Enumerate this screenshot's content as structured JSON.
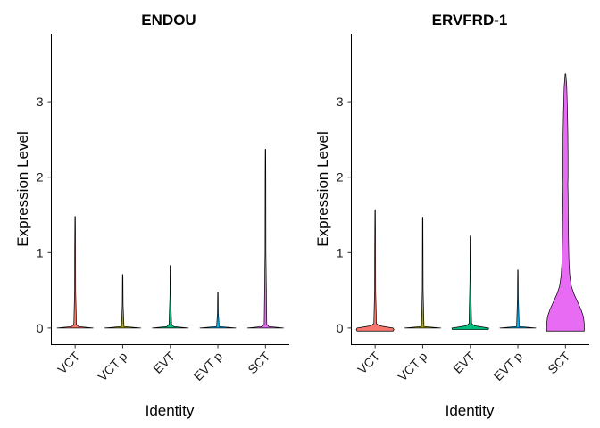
{
  "chart_data": [
    {
      "type": "violin",
      "title": "ENDOU",
      "xlabel": "Identity",
      "ylabel": "Expression Level",
      "ylim": [
        -0.22,
        3.9
      ],
      "yticks": [
        0,
        1,
        2,
        3
      ],
      "categories": [
        "VCT",
        "VCT p",
        "EVT",
        "EVT p",
        "SCT"
      ],
      "max_values": [
        1.48,
        0.71,
        0.83,
        0.48,
        2.37
      ],
      "colors": [
        "#f8766d",
        "#a3a500",
        "#00bf7d",
        "#00b0f6",
        "#e76bf3"
      ],
      "violins": [
        {
          "ys": [
            0,
            0.02,
            0.05,
            0.5,
            1.0,
            1.48
          ],
          "ws": [
            0.42,
            0.08,
            0.03,
            0.012,
            0.01,
            0.005
          ]
        },
        {
          "ys": [
            0,
            0.02,
            0.3,
            0.71
          ],
          "ws": [
            0.42,
            0.03,
            0.01,
            0.005
          ]
        },
        {
          "ys": [
            0,
            0.02,
            0.05,
            0.4,
            0.83
          ],
          "ws": [
            0.42,
            0.08,
            0.03,
            0.01,
            0.005
          ]
        },
        {
          "ys": [
            0,
            0.02,
            0.2,
            0.48
          ],
          "ws": [
            0.42,
            0.03,
            0.01,
            0.005
          ]
        },
        {
          "ys": [
            0,
            0.02,
            0.05,
            1.0,
            2.0,
            2.37
          ],
          "ws": [
            0.42,
            0.08,
            0.03,
            0.01,
            0.008,
            0.005
          ]
        }
      ]
    },
    {
      "type": "violin",
      "title": "ERVFRD-1",
      "xlabel": "Identity",
      "ylabel": "Expression Level",
      "ylim": [
        -0.22,
        3.9
      ],
      "yticks": [
        0,
        1,
        2,
        3
      ],
      "categories": [
        "VCT",
        "VCT p",
        "EVT",
        "EVT p",
        "SCT"
      ],
      "max_values": [
        1.57,
        1.47,
        1.22,
        0.77,
        3.37
      ],
      "colors": [
        "#f8766d",
        "#a3a500",
        "#00bf7d",
        "#00b0f6",
        "#e76bf3"
      ],
      "violins": [
        {
          "ys": [
            -0.04,
            -0.02,
            0,
            0.03,
            0.06,
            0.5,
            1.0,
            1.57
          ],
          "ws": [
            0.42,
            0.44,
            0.42,
            0.1,
            0.03,
            0.012,
            0.01,
            0.005
          ]
        },
        {
          "ys": [
            0,
            0.02,
            0.5,
            1.47
          ],
          "ws": [
            0.42,
            0.03,
            0.01,
            0.005
          ]
        },
        {
          "ys": [
            -0.02,
            0,
            0.03,
            0.06,
            0.6,
            1.22
          ],
          "ws": [
            0.42,
            0.43,
            0.1,
            0.03,
            0.01,
            0.005
          ]
        },
        {
          "ys": [
            0,
            0.02,
            0.4,
            0.77
          ],
          "ws": [
            0.42,
            0.03,
            0.01,
            0.005
          ]
        },
        {
          "ys": [
            -0.04,
            0.05,
            0.15,
            0.25,
            0.35,
            0.45,
            0.55,
            0.7,
            0.9,
            1.2,
            1.5,
            1.8,
            1.9,
            2.0,
            2.3,
            2.6,
            2.9,
            3.2,
            3.37
          ],
          "ws": [
            0.44,
            0.44,
            0.42,
            0.36,
            0.28,
            0.2,
            0.14,
            0.1,
            0.08,
            0.07,
            0.065,
            0.06,
            0.055,
            0.06,
            0.06,
            0.055,
            0.045,
            0.03,
            0.008
          ]
        }
      ]
    }
  ]
}
